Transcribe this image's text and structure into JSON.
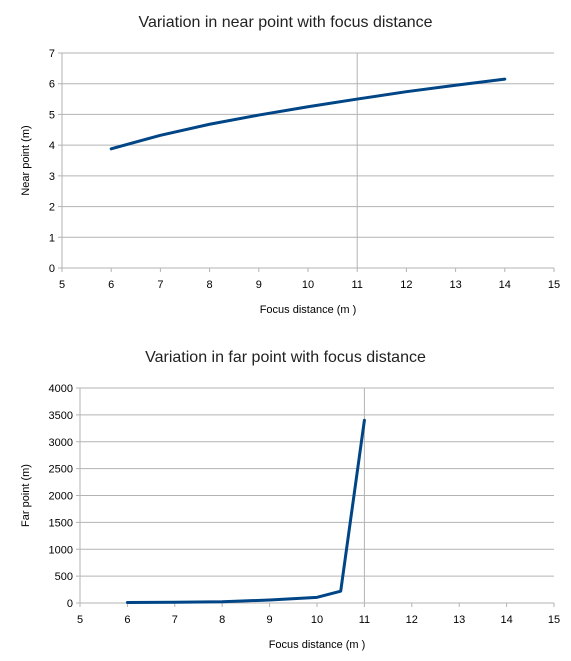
{
  "chart_data": [
    {
      "type": "line",
      "title": "Variation in near point with focus distance",
      "xlabel": "Focus distance (m )",
      "ylabel": "Near point (m)",
      "xlim": [
        5,
        15
      ],
      "ylim": [
        0,
        7
      ],
      "xticks": [
        5,
        6,
        7,
        8,
        9,
        10,
        11,
        12,
        13,
        14,
        15
      ],
      "yticks": [
        0,
        1,
        2,
        3,
        4,
        5,
        6,
        7
      ],
      "grid": true,
      "vline_x": 11,
      "line_color": "#004586",
      "series": [
        {
          "x": [
            6,
            7,
            8,
            9,
            10,
            11,
            12,
            13,
            14
          ],
          "y": [
            3.88,
            4.32,
            4.68,
            4.98,
            5.25,
            5.5,
            5.74,
            5.95,
            6.15
          ]
        }
      ]
    },
    {
      "type": "line",
      "title": "Variation in far point with focus distance",
      "xlabel": "Focus distance (m )",
      "ylabel": "Far point (m)",
      "xlim": [
        5,
        15
      ],
      "ylim": [
        0,
        4000
      ],
      "xticks": [
        5,
        6,
        7,
        8,
        9,
        10,
        11,
        12,
        13,
        14,
        15
      ],
      "yticks": [
        0,
        500,
        1000,
        1500,
        2000,
        2500,
        3000,
        3500,
        4000
      ],
      "grid": true,
      "vline_x": 11,
      "line_color": "#004586",
      "series": [
        {
          "x": [
            6,
            7,
            8,
            9,
            10,
            10.5,
            11
          ],
          "y": [
            9,
            14,
            24,
            55,
            105,
            220,
            3400
          ]
        }
      ]
    }
  ]
}
